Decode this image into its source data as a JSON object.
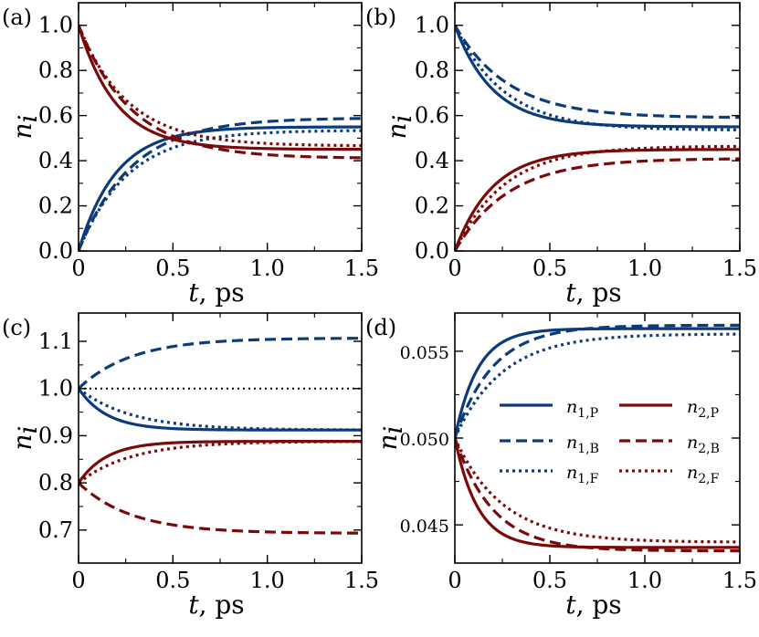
{
  "figure": {
    "panels": [
      "a",
      "b",
      "c",
      "d"
    ]
  },
  "colors": {
    "blue": "#0d3b7a",
    "red": "#7a0a0a",
    "ref": "#000000"
  },
  "chart_data": [
    {
      "panel": "(a)",
      "type": "line",
      "xlabel": "t",
      "xunit": "ps",
      "ylabel": "n_i",
      "xlim": [
        0,
        1.5
      ],
      "ylim": [
        0,
        1.1
      ],
      "xticks": [
        0,
        0.5,
        1.0,
        1.5
      ],
      "xtick_labels": [
        "0",
        "0.5",
        "1.0",
        "1.5"
      ],
      "yticks": [
        0,
        0.2,
        0.4,
        0.6,
        0.8,
        1.0
      ],
      "ytick_labels": [
        "0.0",
        "0.2",
        "0.4",
        "0.6",
        "0.8",
        "1.0"
      ],
      "series": [
        {
          "name": "n1,P",
          "color": "blue",
          "style": "solid",
          "start": 0,
          "end": 0.55,
          "tau": 0.2
        },
        {
          "name": "n1,B",
          "color": "blue",
          "style": "dashed",
          "start": 0,
          "end": 0.59,
          "tau": 0.28
        },
        {
          "name": "n1,F",
          "color": "blue",
          "style": "dotted",
          "start": 0,
          "end": 0.535,
          "tau": 0.26
        },
        {
          "name": "n2,P",
          "color": "red",
          "style": "solid",
          "start": 1.0,
          "end": 0.45,
          "tau": 0.2
        },
        {
          "name": "n2,B",
          "color": "red",
          "style": "dashed",
          "start": 1.0,
          "end": 0.41,
          "tau": 0.28
        },
        {
          "name": "n2,F",
          "color": "red",
          "style": "dotted",
          "start": 1.0,
          "end": 0.465,
          "tau": 0.26
        }
      ]
    },
    {
      "panel": "(b)",
      "type": "line",
      "xlabel": "t",
      "xunit": "ps",
      "ylabel": "n_i",
      "xlim": [
        0,
        1.5
      ],
      "ylim": [
        0,
        1.1
      ],
      "xticks": [
        0,
        0.5,
        1.0,
        1.5
      ],
      "xtick_labels": [
        "0",
        "0.5",
        "1.0",
        "1.5"
      ],
      "yticks": [
        0,
        0.2,
        0.4,
        0.6,
        0.8,
        1.0
      ],
      "ytick_labels": [
        "0.0",
        "0.2",
        "0.4",
        "0.6",
        "0.8",
        "1.0"
      ],
      "series": [
        {
          "name": "n1,P",
          "color": "blue",
          "style": "solid",
          "start": 1.0,
          "end": 0.55,
          "tau": 0.2
        },
        {
          "name": "n1,B",
          "color": "blue",
          "style": "dashed",
          "start": 1.0,
          "end": 0.59,
          "tau": 0.28
        },
        {
          "name": "n1,F",
          "color": "blue",
          "style": "dotted",
          "start": 1.0,
          "end": 0.535,
          "tau": 0.26
        },
        {
          "name": "n2,P",
          "color": "red",
          "style": "solid",
          "start": 0,
          "end": 0.45,
          "tau": 0.2
        },
        {
          "name": "n2,B",
          "color": "red",
          "style": "dashed",
          "start": 0,
          "end": 0.41,
          "tau": 0.28
        },
        {
          "name": "n2,F",
          "color": "red",
          "style": "dotted",
          "start": 0,
          "end": 0.465,
          "tau": 0.26
        }
      ]
    },
    {
      "panel": "(c)",
      "type": "line",
      "xlabel": "t",
      "xunit": "ps",
      "ylabel": "n_i",
      "xlim": [
        0,
        1.5
      ],
      "ylim": [
        0.63,
        1.16
      ],
      "xticks": [
        0,
        0.5,
        1.0,
        1.5
      ],
      "xtick_labels": [
        "0",
        "0.5",
        "1.0",
        "1.5"
      ],
      "yticks": [
        0.7,
        0.8,
        0.9,
        1.0,
        1.1
      ],
      "ytick_labels": [
        "0.7",
        "0.8",
        "0.9",
        "1.0",
        "1.1"
      ],
      "reference_line": {
        "y": 1.0,
        "style": "dotted",
        "color": "ref"
      },
      "series": [
        {
          "name": "n1,P",
          "color": "blue",
          "style": "solid",
          "start": 1.0,
          "end": 0.912,
          "tau": 0.15
        },
        {
          "name": "n1,B",
          "color": "blue",
          "style": "dashed",
          "start": 1.0,
          "end": 1.107,
          "tau": 0.28
        },
        {
          "name": "n1,F",
          "color": "blue",
          "style": "dotted",
          "start": 1.0,
          "end": 0.912,
          "tau": 0.28
        },
        {
          "name": "n2,P",
          "color": "red",
          "style": "solid",
          "start": 0.8,
          "end": 0.888,
          "tau": 0.15
        },
        {
          "name": "n2,B",
          "color": "red",
          "style": "dashed",
          "start": 0.8,
          "end": 0.693,
          "tau": 0.28
        },
        {
          "name": "n2,F",
          "color": "red",
          "style": "dotted",
          "start": 0.8,
          "end": 0.888,
          "tau": 0.28
        }
      ]
    },
    {
      "panel": "(d)",
      "type": "line",
      "xlabel": "t",
      "xunit": "ps",
      "ylabel": "n_i",
      "xlim": [
        0,
        1.5
      ],
      "ylim": [
        0.0428,
        0.0572
      ],
      "xticks": [
        0,
        0.5,
        1.0,
        1.5
      ],
      "xtick_labels": [
        "0",
        "0.5",
        "1.0",
        "1.5"
      ],
      "yticks": [
        0.045,
        0.05,
        0.055
      ],
      "ytick_labels": [
        "0.045",
        "0.050",
        "0.055"
      ],
      "series": [
        {
          "name": "n1,P",
          "color": "blue",
          "style": "solid",
          "start": 0.05,
          "end": 0.0563,
          "tau": 0.12
        },
        {
          "name": "n1,B",
          "color": "blue",
          "style": "dashed",
          "start": 0.05,
          "end": 0.0565,
          "tau": 0.2
        },
        {
          "name": "n1,F",
          "color": "blue",
          "style": "dotted",
          "start": 0.05,
          "end": 0.056,
          "tau": 0.25
        },
        {
          "name": "n2,P",
          "color": "red",
          "style": "solid",
          "start": 0.05,
          "end": 0.0437,
          "tau": 0.12
        },
        {
          "name": "n2,B",
          "color": "red",
          "style": "dashed",
          "start": 0.05,
          "end": 0.0435,
          "tau": 0.2
        },
        {
          "name": "n2,F",
          "color": "red",
          "style": "dotted",
          "start": 0.05,
          "end": 0.044,
          "tau": 0.25
        }
      ],
      "legend": {
        "location": "center-right",
        "entries": [
          {
            "base": "n",
            "sub": "1,P",
            "color": "blue",
            "style": "solid"
          },
          {
            "base": "n",
            "sub": "2,P",
            "color": "red",
            "style": "solid"
          },
          {
            "base": "n",
            "sub": "1,B",
            "color": "blue",
            "style": "dashed"
          },
          {
            "base": "n",
            "sub": "2,B",
            "color": "red",
            "style": "dashed"
          },
          {
            "base": "n",
            "sub": "1,F",
            "color": "blue",
            "style": "dotted"
          },
          {
            "base": "n",
            "sub": "2,F",
            "color": "red",
            "style": "dotted"
          }
        ]
      }
    }
  ]
}
